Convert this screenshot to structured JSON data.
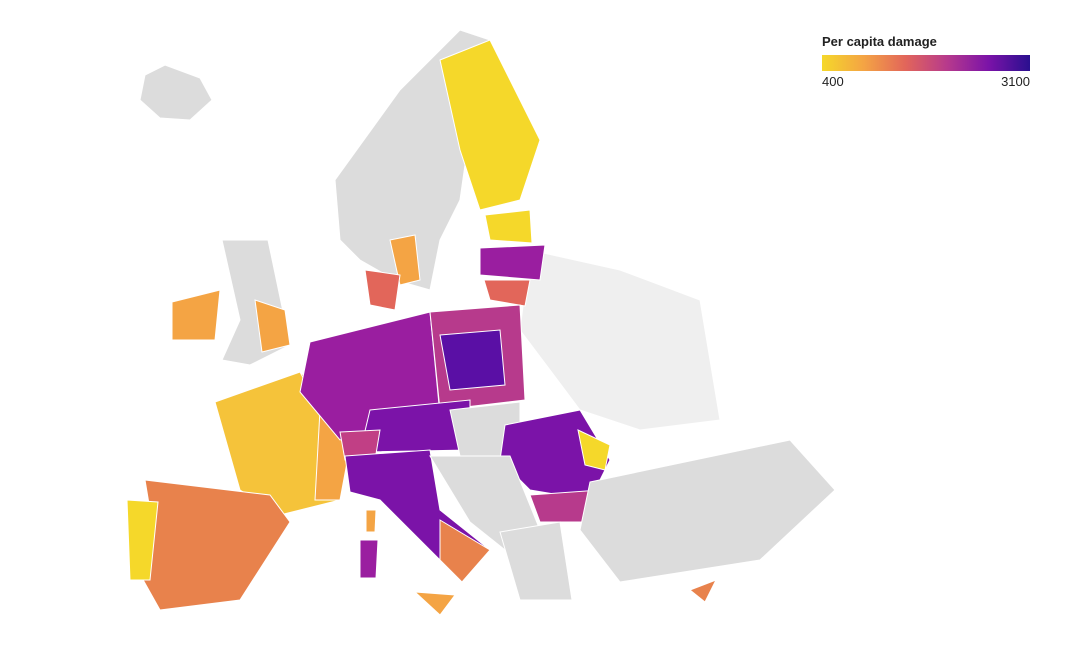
{
  "legend": {
    "title": "Per capita damage",
    "min": 400,
    "max": 3100,
    "colors": [
      "#f5d82a",
      "#f4a444",
      "#e2665a",
      "#b73a8c",
      "#7b13a8",
      "#2a0f8f"
    ]
  }
}
